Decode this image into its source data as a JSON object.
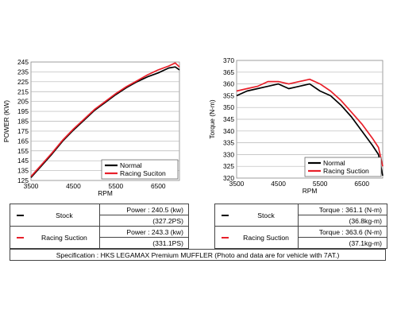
{
  "chart_data": [
    {
      "type": "line",
      "xlabel": "RPM",
      "ylabel": "POWER (KW)",
      "xlim": [
        3500,
        7000
      ],
      "ylim": [
        125,
        245
      ],
      "x_ticks": [
        3500,
        4500,
        5500,
        6500
      ],
      "y_ticks": [
        125,
        135,
        145,
        155,
        165,
        175,
        185,
        195,
        205,
        215,
        225,
        235,
        245
      ],
      "grid": "horizontal",
      "legend_position": "bottom-right",
      "x": [
        3500,
        3750,
        4000,
        4250,
        4500,
        4750,
        5000,
        5250,
        5500,
        5750,
        6000,
        6250,
        6500,
        6750,
        6900,
        7000
      ],
      "series": [
        {
          "name": "Normal",
          "color": "#000000",
          "values": [
            128,
            140,
            152,
            165,
            176,
            186,
            196,
            204,
            212,
            219,
            225,
            230,
            234,
            239,
            240,
            237
          ]
        },
        {
          "name": "Racing Suciton",
          "color": "#e8202a",
          "values": [
            129,
            141,
            153,
            166,
            177,
            187,
            197,
            205,
            213,
            220,
            226,
            232,
            237,
            241,
            244,
            240
          ]
        }
      ]
    },
    {
      "type": "line",
      "xlabel": "RPM",
      "ylabel": "Torque (N-m)",
      "xlim": [
        3500,
        7000
      ],
      "ylim": [
        320,
        370
      ],
      "x_ticks": [
        3500,
        4500,
        5500,
        6500
      ],
      "y_ticks": [
        320,
        325,
        330,
        335,
        340,
        345,
        350,
        355,
        360,
        365,
        370
      ],
      "grid": "horizontal",
      "legend_position": "bottom-right",
      "x": [
        3500,
        3750,
        4000,
        4250,
        4500,
        4750,
        5000,
        5250,
        5500,
        5750,
        6000,
        6250,
        6500,
        6750,
        6900,
        7000
      ],
      "series": [
        {
          "name": "Normal",
          "color": "#000000",
          "values": [
            355,
            357,
            358,
            359,
            360,
            358,
            359,
            360,
            357,
            355,
            351,
            346,
            340,
            334,
            330,
            321
          ]
        },
        {
          "name": "Racing Suction",
          "color": "#e8202a",
          "values": [
            357,
            358,
            359,
            361,
            361,
            360,
            361,
            362,
            360,
            357,
            353,
            348,
            343,
            337,
            333,
            325
          ]
        }
      ]
    }
  ],
  "tables": {
    "power": {
      "rows": [
        {
          "color": "#000000",
          "label": "Stock",
          "value1": "Power : 240.5 (kw)",
          "value2": "(327.2PS)"
        },
        {
          "color": "#e8202a",
          "label": "Racing Suction",
          "value1": "Power : 243.3 (kw)",
          "value2": "(331.1PS)"
        }
      ]
    },
    "torque": {
      "rows": [
        {
          "color": "#000000",
          "label": "Stock",
          "value1": "Torque : 361.1 (N-m)",
          "value2": "(36.8kg-m)"
        },
        {
          "color": "#e8202a",
          "label": "Racing Suction",
          "value1": "Torque : 363.6 (N-m)",
          "value2": "(37.1kg-m)"
        }
      ]
    }
  },
  "specification": "Specification : HKS LEGAMAX Premium MUFFLER (Photo and data are for vehicle with 7AT.)"
}
